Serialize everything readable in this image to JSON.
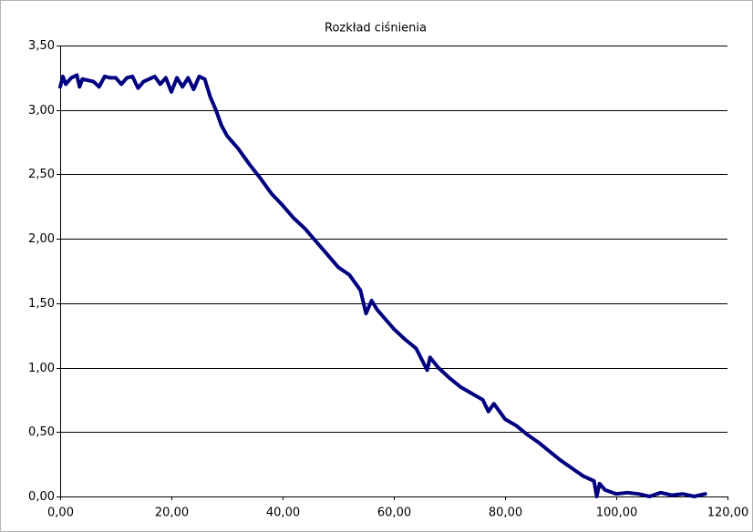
{
  "chart_data": {
    "type": "line",
    "title": "Rozkład ciśnienia",
    "x": [
      0,
      0.5,
      1,
      2,
      3,
      3.5,
      4,
      5,
      6,
      7,
      8,
      9,
      10,
      11,
      12,
      13,
      14,
      15,
      16,
      17,
      18,
      19,
      20,
      21,
      22,
      23,
      24,
      25,
      26,
      27,
      28,
      29,
      30,
      31,
      32,
      34,
      36,
      38,
      40,
      42,
      44,
      46,
      48,
      50,
      52,
      54,
      55,
      56,
      57,
      58,
      60,
      62,
      64,
      66,
      66.5,
      68,
      70,
      72,
      74,
      76,
      77,
      78,
      80,
      82,
      84,
      86,
      88,
      90,
      92,
      94,
      96,
      96.5,
      97,
      98,
      100,
      102,
      104,
      106,
      108,
      110,
      112,
      114,
      116
    ],
    "values": [
      3.18,
      3.26,
      3.2,
      3.25,
      3.27,
      3.18,
      3.24,
      3.23,
      3.22,
      3.18,
      3.26,
      3.25,
      3.25,
      3.2,
      3.25,
      3.26,
      3.17,
      3.22,
      3.24,
      3.26,
      3.2,
      3.25,
      3.14,
      3.25,
      3.18,
      3.25,
      3.16,
      3.26,
      3.24,
      3.1,
      3.0,
      2.88,
      2.8,
      2.75,
      2.7,
      2.58,
      2.47,
      2.35,
      2.26,
      2.16,
      2.08,
      1.98,
      1.88,
      1.78,
      1.72,
      1.6,
      1.42,
      1.52,
      1.45,
      1.4,
      1.3,
      1.22,
      1.15,
      0.98,
      1.08,
      1.0,
      0.92,
      0.85,
      0.8,
      0.75,
      0.66,
      0.72,
      0.6,
      0.55,
      0.48,
      0.42,
      0.35,
      0.28,
      0.22,
      0.16,
      0.12,
      0.0,
      0.1,
      0.05,
      0.02,
      0.03,
      0.02,
      0.0,
      0.03,
      0.01,
      0.02,
      0.0,
      0.02
    ],
    "color": "#000080",
    "xlim": [
      0,
      120
    ],
    "xticks": [
      {
        "value": 0,
        "label": "0,00"
      },
      {
        "value": 20,
        "label": "20,00"
      },
      {
        "value": 40,
        "label": "40,00"
      },
      {
        "value": 60,
        "label": "60,00"
      },
      {
        "value": 80,
        "label": "80,00"
      },
      {
        "value": 100,
        "label": "100,00"
      },
      {
        "value": 120,
        "label": "120,00"
      }
    ],
    "ylim": [
      0,
      3.5
    ],
    "yticks": [
      {
        "value": 0,
        "label": "0,00"
      },
      {
        "value": 0.5,
        "label": "0,50"
      },
      {
        "value": 1,
        "label": "1,00"
      },
      {
        "value": 1.5,
        "label": "1,50"
      },
      {
        "value": 2,
        "label": "2,00"
      },
      {
        "value": 2.5,
        "label": "2,50"
      },
      {
        "value": 3,
        "label": "3,00"
      },
      {
        "value": 3.5,
        "label": "3,50"
      }
    ],
    "grid": true
  }
}
